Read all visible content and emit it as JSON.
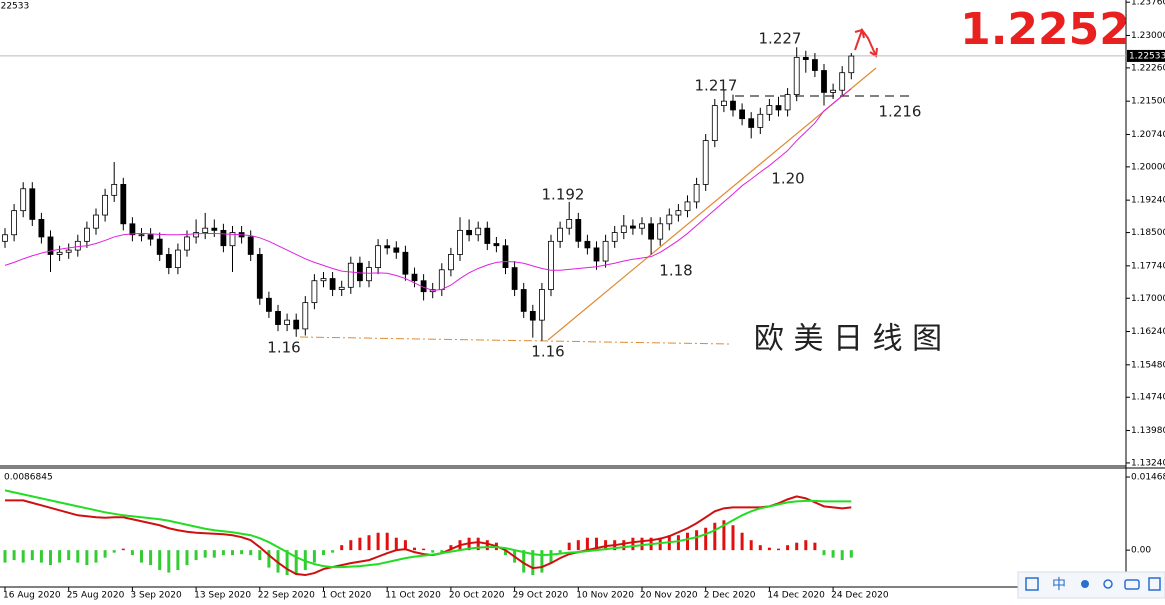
{
  "chart_data": [
    {
      "type": "candlestick",
      "categories": [
        "16 Aug 2020",
        null,
        null,
        null,
        null,
        null,
        null,
        "25 Aug 2020",
        null,
        null,
        null,
        null,
        null,
        null,
        "3 Sep 2020",
        null,
        null,
        null,
        null,
        null,
        null,
        "13 Sep 2020",
        null,
        null,
        null,
        null,
        null,
        null,
        "22 Sep 2020",
        null,
        null,
        null,
        null,
        null,
        null,
        "1 Oct 2020",
        null,
        null,
        null,
        null,
        null,
        null,
        "11 Oct 2020",
        null,
        null,
        null,
        null,
        null,
        null,
        "20 Oct 2020",
        null,
        null,
        null,
        null,
        null,
        null,
        "29 Oct 2020",
        null,
        null,
        null,
        null,
        null,
        null,
        "10 Nov 2020",
        null,
        null,
        null,
        null,
        null,
        null,
        "20 Nov 2020",
        null,
        null,
        null,
        null,
        null,
        null,
        "2 Dec 2020",
        null,
        null,
        null,
        null,
        null,
        null,
        "14 Dec 2020",
        null,
        null,
        null,
        null,
        null,
        null,
        "24 Dec 2020",
        null,
        null
      ],
      "open": [
        1.183,
        1.1845,
        1.19,
        1.195,
        1.188,
        1.184,
        1.18,
        1.1805,
        1.181,
        1.183,
        1.186,
        1.189,
        1.1935,
        1.196,
        1.187,
        1.1845,
        1.1845,
        1.1835,
        1.18,
        1.177,
        1.181,
        1.184,
        1.185,
        1.186,
        1.1855,
        1.182,
        1.185,
        1.184,
        1.18,
        1.17,
        1.167,
        1.164,
        1.165,
        1.163,
        1.169,
        1.174,
        1.1745,
        1.172,
        1.1725,
        1.178,
        1.174,
        1.177,
        1.182,
        1.1815,
        1.1805,
        1.1755,
        1.174,
        1.1715,
        1.172,
        1.1765,
        1.18,
        1.1855,
        1.1845,
        1.186,
        1.1825,
        1.182,
        1.177,
        1.172,
        1.167,
        1.165,
        1.172,
        1.183,
        1.186,
        1.188,
        1.183,
        1.1815,
        1.1785,
        1.183,
        1.185,
        1.1865,
        1.186,
        1.187,
        1.1835,
        1.187,
        1.189,
        1.19,
        1.192,
        1.196,
        1.206,
        1.214,
        1.215,
        1.213,
        1.211,
        1.209,
        1.212,
        1.214,
        1.213,
        1.2165,
        1.225,
        1.2245,
        1.222,
        1.217,
        1.2175,
        1.2215
      ],
      "high": [
        1.186,
        1.1915,
        1.1965,
        1.1965,
        1.1895,
        1.1855,
        1.182,
        1.1825,
        1.1845,
        1.1875,
        1.1905,
        1.195,
        1.2011,
        1.1975,
        1.1885,
        1.186,
        1.186,
        1.185,
        1.1815,
        1.1825,
        1.1855,
        1.188,
        1.1895,
        1.188,
        1.187,
        1.1865,
        1.1865,
        1.1855,
        1.1815,
        1.1715,
        1.1685,
        1.1665,
        1.1665,
        1.1705,
        1.1755,
        1.176,
        1.176,
        1.174,
        1.1795,
        1.1795,
        1.1785,
        1.1835,
        1.1835,
        1.183,
        1.182,
        1.177,
        1.1755,
        1.1735,
        1.178,
        1.1815,
        1.1885,
        1.188,
        1.1875,
        1.1875,
        1.184,
        1.1835,
        1.1785,
        1.1735,
        1.1685,
        1.1735,
        1.1845,
        1.1875,
        1.192,
        1.1895,
        1.1845,
        1.183,
        1.1845,
        1.1865,
        1.189,
        1.188,
        1.1885,
        1.1885,
        1.1885,
        1.1905,
        1.1915,
        1.1935,
        1.1975,
        1.2075,
        1.2155,
        1.2175,
        1.2165,
        1.2145,
        1.2125,
        1.2135,
        1.2155,
        1.216,
        1.218,
        1.2273,
        1.2265,
        1.226,
        1.2235,
        1.219,
        1.223,
        1.226
      ],
      "low": [
        1.1815,
        1.183,
        1.1885,
        1.1865,
        1.1825,
        1.176,
        1.1785,
        1.179,
        1.1795,
        1.1815,
        1.1845,
        1.1875,
        1.192,
        1.1855,
        1.183,
        1.183,
        1.182,
        1.1785,
        1.1755,
        1.1755,
        1.1795,
        1.1825,
        1.1835,
        1.184,
        1.1805,
        1.176,
        1.1825,
        1.1785,
        1.1685,
        1.1655,
        1.1625,
        1.1625,
        1.1612,
        1.1615,
        1.1675,
        1.1725,
        1.1705,
        1.1705,
        1.171,
        1.1725,
        1.1725,
        1.1755,
        1.18,
        1.179,
        1.174,
        1.1725,
        1.1695,
        1.17,
        1.1705,
        1.175,
        1.1785,
        1.183,
        1.183,
        1.181,
        1.1805,
        1.1755,
        1.1705,
        1.1655,
        1.161,
        1.1603,
        1.1705,
        1.1815,
        1.1845,
        1.1815,
        1.18,
        1.1765,
        1.177,
        1.1815,
        1.1835,
        1.1845,
        1.1845,
        1.18,
        1.182,
        1.1855,
        1.1875,
        1.1885,
        1.1905,
        1.1945,
        1.2045,
        1.2125,
        1.2115,
        1.2095,
        1.2065,
        1.2075,
        1.2105,
        1.2115,
        1.2115,
        1.215,
        1.2215,
        1.2205,
        1.214,
        1.2155,
        1.216,
        1.22
      ],
      "close": [
        1.1845,
        1.19,
        1.195,
        1.188,
        1.184,
        1.18,
        1.1805,
        1.181,
        1.183,
        1.186,
        1.189,
        1.1935,
        1.196,
        1.187,
        1.1845,
        1.1845,
        1.1835,
        1.18,
        1.177,
        1.181,
        1.184,
        1.185,
        1.186,
        1.1855,
        1.182,
        1.185,
        1.184,
        1.18,
        1.17,
        1.167,
        1.164,
        1.165,
        1.163,
        1.169,
        1.174,
        1.1745,
        1.172,
        1.1725,
        1.178,
        1.174,
        1.177,
        1.182,
        1.1815,
        1.1805,
        1.1755,
        1.174,
        1.1715,
        1.172,
        1.1765,
        1.18,
        1.1855,
        1.1845,
        1.186,
        1.1825,
        1.182,
        1.177,
        1.172,
        1.167,
        1.165,
        1.172,
        1.183,
        1.186,
        1.188,
        1.183,
        1.1815,
        1.1785,
        1.183,
        1.185,
        1.1865,
        1.186,
        1.187,
        1.1835,
        1.187,
        1.189,
        1.19,
        1.192,
        1.196,
        1.206,
        1.214,
        1.215,
        1.213,
        1.211,
        1.209,
        1.212,
        1.214,
        1.213,
        1.2165,
        1.225,
        1.2245,
        1.222,
        1.217,
        1.2175,
        1.2215,
        1.2253
      ],
      "up_color": "#ffffff",
      "down_color": "#000000",
      "overlays": [
        {
          "color": "#e020e0",
          "values": [
            1.1775,
            1.1782,
            1.179,
            1.1797,
            1.1803,
            1.1808,
            1.1812,
            1.1815,
            1.1818,
            1.182,
            1.1825,
            1.1832,
            1.184,
            1.1845,
            1.1847,
            1.1848,
            1.1847,
            1.1846,
            1.1845,
            1.1845,
            1.1846,
            1.1847,
            1.1848,
            1.1848,
            1.1847,
            1.1846,
            1.1845,
            1.1843,
            1.1838,
            1.183,
            1.182,
            1.181,
            1.18,
            1.179,
            1.1782,
            1.1775,
            1.1768,
            1.1762,
            1.176,
            1.1758,
            1.1757,
            1.1758,
            1.1757,
            1.1752,
            1.1745,
            1.1735,
            1.1725,
            1.1718,
            1.172,
            1.173,
            1.1745,
            1.1758,
            1.1768,
            1.1776,
            1.1782,
            1.1784,
            1.1783,
            1.178,
            1.1774,
            1.1768,
            1.1764,
            1.1764,
            1.1766,
            1.1768,
            1.177,
            1.1772,
            1.1776,
            1.178,
            1.1785,
            1.1789,
            1.1792,
            1.1795,
            1.1805,
            1.1818,
            1.1832,
            1.1848,
            1.1866,
            1.1884,
            1.1902,
            1.192,
            1.1938,
            1.1957,
            1.1972,
            1.1988,
            1.2003,
            1.202,
            1.2037,
            1.206,
            1.208,
            1.21,
            1.2128,
            1.2145,
            1.2162,
            1.2178
          ]
        }
      ],
      "ylim": [
        1.1317,
        1.2381
      ],
      "yticks": [
        {
          "value": 1.2376,
          "label": "1.23760"
        },
        {
          "value": 1.23,
          "label": "1.23000"
        },
        {
          "value": 1.2226,
          "label": "1.22260"
        },
        {
          "value": 1.215,
          "label": "1.21500"
        },
        {
          "value": 1.2074,
          "label": "1.20740"
        },
        {
          "value": 1.2,
          "label": "1.20000"
        },
        {
          "value": 1.1924,
          "label": "1.19240"
        },
        {
          "value": 1.185,
          "label": "1.18500"
        },
        {
          "value": 1.1774,
          "label": "1.17740"
        },
        {
          "value": 1.17,
          "label": "1.17000"
        },
        {
          "value": 1.1624,
          "label": "1.16240"
        },
        {
          "value": 1.1548,
          "label": "1.15480"
        },
        {
          "value": 1.1474,
          "label": "1.14740"
        },
        {
          "value": 1.1398,
          "label": "1.13980"
        },
        {
          "value": 1.1324,
          "label": "1.13240"
        }
      ],
      "current_price": 1.22533,
      "annotations": [
        "1.16",
        "1.16",
        "1.192",
        "1.18",
        "1.217",
        "1.227",
        "1.20",
        "1.216",
        "欧 美 日 线 图",
        "1.2252"
      ]
    },
    {
      "type": "macd",
      "current_value": 0.0086845,
      "ylim": [
        -0.0074,
        0.0165
      ],
      "yticks": [
        0.014686,
        {
          "value": 0,
          "label": "0.00"
        }
      ],
      "histogram": {
        "up_color": "#e01010",
        "down_color": "#33cc33",
        "values": [
          -0.0025,
          -0.002,
          -0.0025,
          -0.002,
          -0.0025,
          -0.003,
          -0.0025,
          -0.002,
          -0.0025,
          -0.003,
          -0.0025,
          -0.0015,
          -0.0005,
          0.0003,
          -0.001,
          -0.0025,
          -0.003,
          -0.004,
          -0.0045,
          -0.004,
          -0.003,
          -0.002,
          -0.0015,
          -0.0015,
          -0.001,
          -0.001,
          -0.0008,
          -0.001,
          -0.002,
          -0.0035,
          -0.0045,
          -0.005,
          -0.005,
          -0.004,
          -0.0025,
          -0.001,
          -0.0005,
          0.001,
          0.002,
          0.0025,
          0.003,
          0.0035,
          0.0035,
          0.0025,
          0.002,
          0.0005,
          0.0003,
          -0.0005,
          -0.0008,
          0.001,
          0.002,
          0.0025,
          0.0025,
          0.002,
          0.0015,
          -0.001,
          -0.0025,
          -0.0045,
          -0.005,
          -0.0045,
          -0.0025,
          -0.0005,
          0.0015,
          0.002,
          0.0025,
          0.0025,
          0.002,
          0.002,
          0.002,
          0.0025,
          0.0025,
          0.0025,
          0.0025,
          0.003,
          0.003,
          0.0035,
          0.004,
          0.0045,
          0.0055,
          0.006,
          0.005,
          0.0035,
          0.002,
          0.001,
          0.0005,
          0.0003,
          0.001,
          0.0015,
          0.002,
          0.0015,
          -0.001,
          -0.0015,
          -0.002,
          -0.0015
        ]
      },
      "series": [
        {
          "color": "#d01010",
          "values": [
            0.01,
            0.01,
            0.01,
            0.0095,
            0.009,
            0.0085,
            0.008,
            0.0075,
            0.007,
            0.0068,
            0.0066,
            0.0065,
            0.0066,
            0.0066,
            0.0062,
            0.0058,
            0.0054,
            0.005,
            0.0044,
            0.004,
            0.0037,
            0.0035,
            0.0034,
            0.0033,
            0.0032,
            0.003,
            0.0026,
            0.002,
            0.0006,
            -0.001,
            -0.0025,
            -0.0038,
            -0.0048,
            -0.005,
            -0.0046,
            -0.0038,
            -0.0034,
            -0.003,
            -0.0026,
            -0.0023,
            -0.002,
            -0.0013,
            -0.0006,
            0,
            0.0002,
            -0.0004,
            -0.0008,
            -0.001,
            -0.0006,
            0.0002,
            0.001,
            0.0014,
            0.0016,
            0.0013,
            0.0008,
            0,
            -0.0013,
            -0.0026,
            -0.0036,
            -0.0034,
            -0.0026,
            -0.0016,
            -0.0008,
            -0.0004,
            0,
            0.0004,
            0.0008,
            0.001,
            0.0013,
            0.0016,
            0.0018,
            0.002,
            0.0023,
            0.0028,
            0.0036,
            0.0044,
            0.0054,
            0.0066,
            0.0078,
            0.0084,
            0.0086,
            0.0086,
            0.0086,
            0.0086,
            0.0088,
            0.0094,
            0.0102,
            0.0108,
            0.0104,
            0.0096,
            0.0088,
            0.0086,
            0.0084,
            0.0086
          ]
        },
        {
          "color": "#22dd22",
          "values": [
            0.012,
            0.0116,
            0.0112,
            0.0108,
            0.0104,
            0.01,
            0.0096,
            0.0092,
            0.0088,
            0.0084,
            0.008,
            0.0076,
            0.0073,
            0.007,
            0.0068,
            0.0066,
            0.0064,
            0.0062,
            0.0059,
            0.0055,
            0.0051,
            0.0047,
            0.0043,
            0.004,
            0.0038,
            0.0036,
            0.0033,
            0.003,
            0.0024,
            0.0016,
            0.0006,
            -0.0004,
            -0.0014,
            -0.0022,
            -0.0028,
            -0.0032,
            -0.0034,
            -0.0034,
            -0.0033,
            -0.0032,
            -0.003,
            -0.0028,
            -0.0024,
            -0.002,
            -0.0016,
            -0.0013,
            -0.0011,
            -0.0009,
            -0.0006,
            -0.0003,
            0,
            0.0003,
            0.0005,
            0.0006,
            0.0006,
            0.0004,
            0,
            -0.0004,
            -0.0008,
            -0.001,
            -0.0009,
            -0.0007,
            -0.0005,
            -0.0004,
            -0.0002,
            0,
            0.0002,
            0.0004,
            0.0006,
            0.0008,
            0.001,
            0.0012,
            0.0014,
            0.0016,
            0.0018,
            0.0022,
            0.0026,
            0.0032,
            0.004,
            0.005,
            0.006,
            0.007,
            0.0078,
            0.0084,
            0.0088,
            0.0092,
            0.0096,
            0.0098,
            0.0099,
            0.0099,
            0.0098,
            0.0098,
            0.0098,
            0.0098
          ]
        }
      ]
    }
  ],
  "toolbar": {
    "ime": "中"
  }
}
